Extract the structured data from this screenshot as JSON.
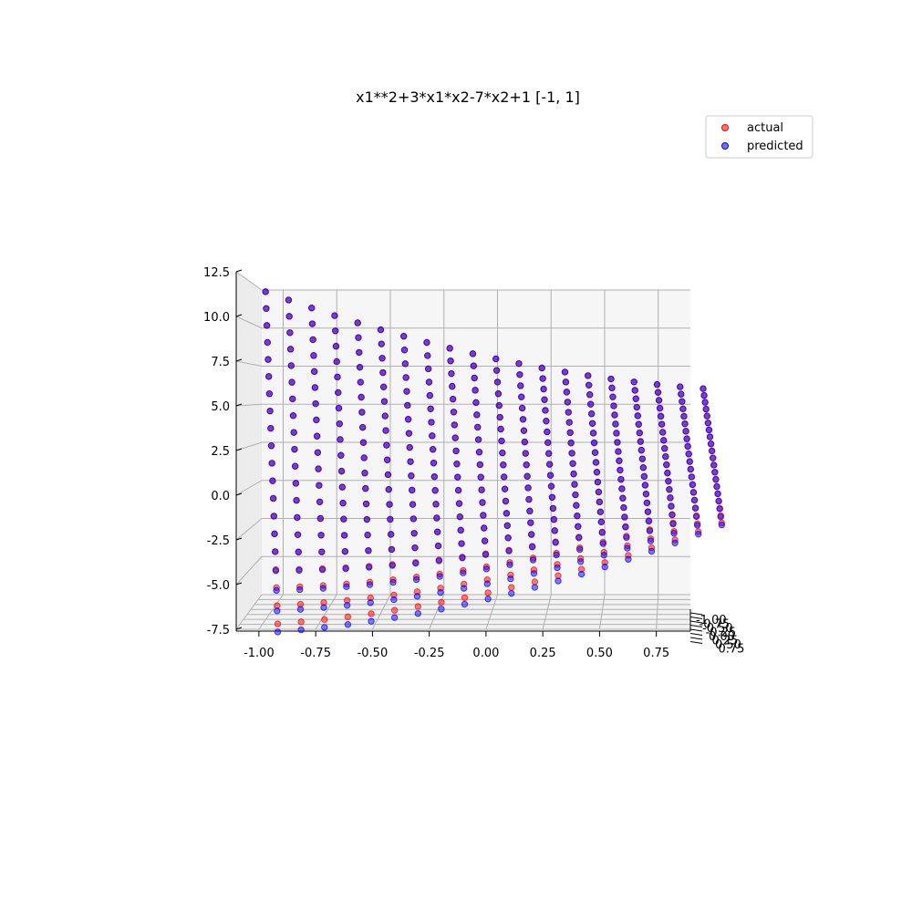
{
  "chart_data": {
    "type": "scatter",
    "title": "x1**2+3*x1*x2-7*x2+1 [-1, 1]",
    "legend_location": "top-right",
    "grid": true,
    "x_axis": {
      "range": [
        -1.1,
        0.9
      ],
      "ticks": [
        "-1.00",
        "-0.75",
        "-0.50",
        "-0.25",
        "0.00",
        "0.25",
        "0.50",
        "0.75"
      ]
    },
    "y_axis_depth": {
      "range": [
        -1.0,
        1.0
      ],
      "ticks": [
        "-1.00",
        "-0.75",
        "-0.50",
        "-0.25",
        "0.00",
        "0.25",
        "0.50",
        "0.75"
      ]
    },
    "z_axis": {
      "range": [
        -7.5,
        12.5
      ],
      "ticks": [
        "-7.5",
        "-5.0",
        "-2.5",
        "0.0",
        "2.5",
        "5.0",
        "7.5",
        "10.0",
        "12.5"
      ]
    },
    "series": [
      {
        "name": "actual",
        "color": "#ff0000",
        "x1_samples": 20,
        "x2_samples": 20,
        "x1_range": [
          -1,
          1
        ],
        "x2_range": [
          -1,
          1
        ]
      },
      {
        "name": "predicted",
        "color": "#0000ff",
        "x1_samples": 20,
        "x2_samples": 20,
        "x1_range": [
          -1,
          1
        ],
        "x2_range": [
          -1,
          1
        ]
      }
    ]
  }
}
